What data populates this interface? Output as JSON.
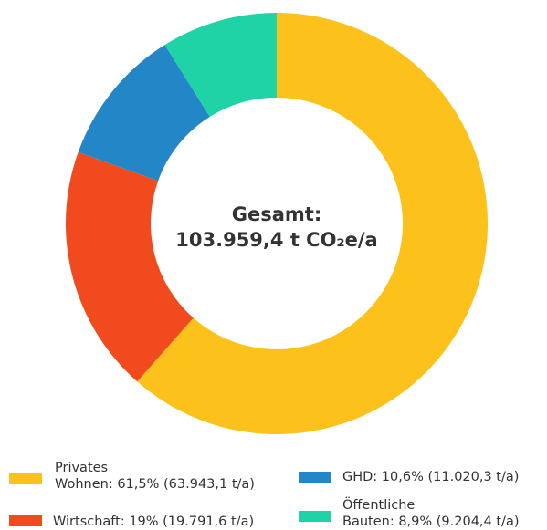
{
  "chart_data": {
    "type": "donut",
    "center_label": [
      "Gesamt:",
      "103.959,4 t CO₂e/a"
    ],
    "categories": [
      "Privates\nWohnen: 61,5% (63.943,1 t/a)",
      "Wirtschaft:  19% (19.791,6 t/a)",
      "GHD: 10,6% (11.020,3 t/a)",
      "Öffentliche\nBauten: 8,9% (9.204,4 t/a)"
    ],
    "values": [
      61.5,
      19,
      10.6,
      8.9
    ],
    "colors": [
      "#fcc21b",
      "#f04a1e",
      "#2387c7",
      "#1fd3a7"
    ]
  }
}
